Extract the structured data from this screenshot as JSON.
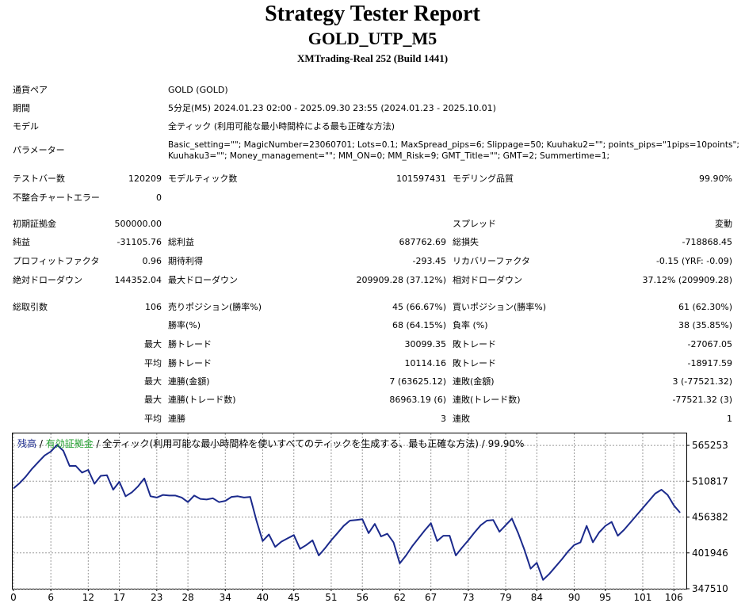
{
  "header": {
    "title": "Strategy Tester Report",
    "subtitle": "GOLD_UTP_M5",
    "build": "XMTrading-Real 252 (Build 1441)"
  },
  "info": {
    "pair_label": "通貨ペア",
    "pair_value": "GOLD (GOLD)",
    "period_label": "期間",
    "period_value": "5分足(M5) 2024.01.23 02:00 - 2025.09.30 23:55 (2024.01.23 - 2025.10.01)",
    "model_label": "モデル",
    "model_value": "全ティック (利用可能な最小時間枠による最も正確な方法)",
    "params_label": "パラメーター",
    "params_line1": "Basic_setting=\"\"; MagicNumber=23060701; Lots=0.1; MaxSpread_pips=6; Slippage=50; Kuuhaku2=\"\"; points_pips=\"1pips=10points\";",
    "params_line2": "Kuuhaku3=\"\"; Money_management=\"\"; MM_ON=0; MM_Risk=9; GMT_Title=\"\"; GMT=2; Summertime=1;"
  },
  "stats": {
    "test_bars_label": "テストバー数",
    "test_bars_value": "120209",
    "model_ticks_label": "モデルティック数",
    "model_ticks_value": "101597431",
    "modeling_quality_label": "モデリング品質",
    "modeling_quality_value": "99.90%",
    "mismatch_label": "不整合チャートエラー",
    "mismatch_value": "0",
    "initial_deposit_label": "初期証拠金",
    "initial_deposit_value": "500000.00",
    "spread_label": "スプレッド",
    "spread_value": "変動",
    "net_profit_label": "純益",
    "net_profit_value": "-31105.76",
    "gross_profit_label": "総利益",
    "gross_profit_value": "687762.69",
    "gross_loss_label": "総損失",
    "gross_loss_value": "-718868.45",
    "profit_factor_label": "プロフィットファクタ",
    "profit_factor_value": "0.96",
    "expected_payoff_label": "期待利得",
    "expected_payoff_value": "-293.45",
    "recovery_factor_label": "リカバリーファクタ",
    "recovery_factor_value": "-0.15 (YRF: -0.09)",
    "abs_drawdown_label": "絶対ドローダウン",
    "abs_drawdown_value": "144352.04",
    "max_drawdown_label": "最大ドローダウン",
    "max_drawdown_value": "209909.28 (37.12%)",
    "rel_drawdown_label": "相対ドローダウン",
    "rel_drawdown_value": "37.12% (209909.28)",
    "total_trades_label": "総取引数",
    "total_trades_value": "106",
    "short_pos_label": "売りポジション(勝率%)",
    "short_pos_value": "45 (66.67%)",
    "long_pos_label": "買いポジション(勝率%)",
    "long_pos_value": "61 (62.30%)",
    "win_rate_label": "勝率(%)",
    "win_rate_value": "68 (64.15%)",
    "loss_rate_label": "負率 (%)",
    "loss_rate_value": "38 (35.85%)",
    "max_label": "最大",
    "avg_label": "平均",
    "largest_win_label": "勝トレード",
    "largest_win_value": "30099.35",
    "largest_loss_label": "敗トレード",
    "largest_loss_value": "-27067.05",
    "avg_win_label": "勝トレード",
    "avg_win_value": "10114.16",
    "avg_loss_label": "敗トレード",
    "avg_loss_value": "-18917.59",
    "max_consec_wins_label": "連勝(金額)",
    "max_consec_wins_value": "7 (63625.12)",
    "max_consec_losses_label": "連敗(金額)",
    "max_consec_losses_value": "3 (-77521.32)",
    "max_consec_profit_label": "連勝(トレード数)",
    "max_consec_profit_value": "86963.19 (6)",
    "max_consec_loss_label": "連敗(トレード数)",
    "max_consec_loss_value": "-77521.32 (3)",
    "avg_consec_wins_label": "連勝",
    "avg_consec_wins_value": "3",
    "avg_consec_losses_label": "連敗",
    "avg_consec_losses_value": "1"
  },
  "chart_data": {
    "type": "line",
    "legend": {
      "balance": "残高",
      "sep1": " / ",
      "equity": "有効証拠金",
      "sep2": " / ",
      "desc": "全ティック(利用可能な最小時間枠を使いすべてのティックを生成する、最も正確な方法) / 99.90%"
    },
    "colors": {
      "balance": "#1b2a8c",
      "equity": "#1f9e2c",
      "grid": "#9a9a9a"
    },
    "xlim": [
      0,
      108
    ],
    "ylim": [
      347510,
      583400
    ],
    "x_ticks": [
      0,
      6,
      12,
      17,
      23,
      28,
      34,
      40,
      45,
      51,
      56,
      62,
      67,
      73,
      79,
      84,
      90,
      95,
      101,
      106
    ],
    "y_ticks": [
      347510,
      401946,
      456382,
      510817,
      565253
    ],
    "series": [
      {
        "name": "残高",
        "x": [
          0,
          1,
          2,
          3,
          4,
          5,
          6,
          7,
          8,
          9,
          10,
          11,
          12,
          13,
          14,
          15,
          16,
          17,
          18,
          19,
          20,
          21,
          22,
          23,
          24,
          25,
          26,
          27,
          28,
          29,
          30,
          31,
          32,
          33,
          34,
          35,
          36,
          37,
          38,
          39,
          40,
          41,
          42,
          43,
          44,
          45,
          46,
          47,
          48,
          49,
          50,
          51,
          52,
          53,
          54,
          55,
          56,
          57,
          58,
          59,
          60,
          61,
          62,
          63,
          64,
          65,
          66,
          67,
          68,
          69,
          70,
          71,
          72,
          73,
          74,
          75,
          76,
          77,
          78,
          79,
          80,
          81,
          82,
          83,
          84,
          85,
          86,
          87,
          88,
          89,
          90,
          91,
          92,
          93,
          94,
          95,
          96,
          97,
          98,
          99,
          100,
          101,
          102,
          103,
          104,
          105,
          106,
          107
        ],
        "y": [
          500000,
          508000,
          518000,
          530000,
          540000,
          550000,
          556000,
          566000,
          557000,
          534000,
          534000,
          524000,
          528000,
          507000,
          519000,
          520000,
          498000,
          510000,
          488000,
          494000,
          503000,
          515000,
          488000,
          486000,
          490000,
          489000,
          489000,
          486000,
          479000,
          489000,
          484000,
          483000,
          485000,
          479000,
          481000,
          487000,
          488000,
          486000,
          487000,
          451000,
          420000,
          430000,
          411000,
          419000,
          424000,
          429000,
          408000,
          414000,
          421000,
          398000,
          409000,
          421000,
          432000,
          443000,
          451000,
          452000,
          453000,
          432000,
          446000,
          427000,
          431000,
          418000,
          386000,
          398000,
          412000,
          424000,
          436000,
          447000,
          420000,
          428000,
          428000,
          398000,
          410000,
          421000,
          433000,
          444000,
          451000,
          452000,
          434000,
          444000,
          454000,
          432000,
          407000,
          378000,
          387000,
          361000,
          370000,
          381000,
          392000,
          404000,
          414000,
          418000,
          443000,
          418000,
          433000,
          443000,
          449000,
          428000,
          437000,
          448000,
          459000,
          470000,
          481000,
          492000,
          498000,
          490000,
          474000,
          463000
        ]
      }
    ]
  }
}
